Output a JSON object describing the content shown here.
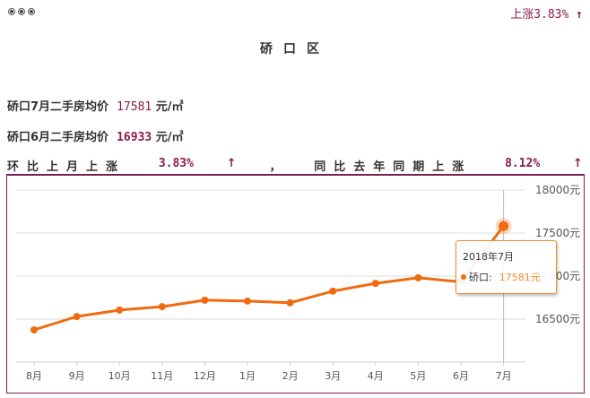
{
  "header": {
    "menu_icon": "three-dots-icon",
    "change_label": "上涨3.83% ",
    "change_arrow": "↑"
  },
  "title": "硚口区",
  "stats": {
    "current": {
      "label": "硚口7月二手房均价 ",
      "value": "17581",
      "unit": " 元/㎡"
    },
    "previous": {
      "label": "硚口6月二手房均价 ",
      "value": "16933",
      "unit": " 元/㎡"
    },
    "mom": {
      "label": "环比上月上涨",
      "value": "3.83%",
      "arrow": "↑",
      "sep": "，"
    },
    "yoy": {
      "label": "同比去年同期上涨",
      "value": "8.12%",
      "arrow": "↑"
    }
  },
  "tooltip": {
    "title": "2018年7月",
    "series_name": "硚口:",
    "value": "17581元"
  },
  "colors": {
    "accent": "#8b1a4a",
    "line": "#f06a10",
    "tooltip_border": "#f08a2c",
    "grid": "#dddddd"
  },
  "chart_data": {
    "type": "line",
    "title": "硚口区",
    "xlabel": "",
    "ylabel": "",
    "categories": [
      "8月",
      "9月",
      "10月",
      "11月",
      "12月",
      "1月",
      "2月",
      "3月",
      "4月",
      "5月",
      "6月",
      "7月"
    ],
    "series": [
      {
        "name": "硚口",
        "values": [
          16375,
          16530,
          16605,
          16645,
          16720,
          16710,
          16690,
          16825,
          16915,
          16980,
          16933,
          17581
        ]
      }
    ],
    "y_ticks": [
      "16500元",
      "17000元",
      "17500元",
      "18000元"
    ],
    "ylim": [
      16000,
      18000
    ],
    "grid": true,
    "y_axis_position": "right",
    "highlight_index": 11,
    "legend": "none"
  }
}
